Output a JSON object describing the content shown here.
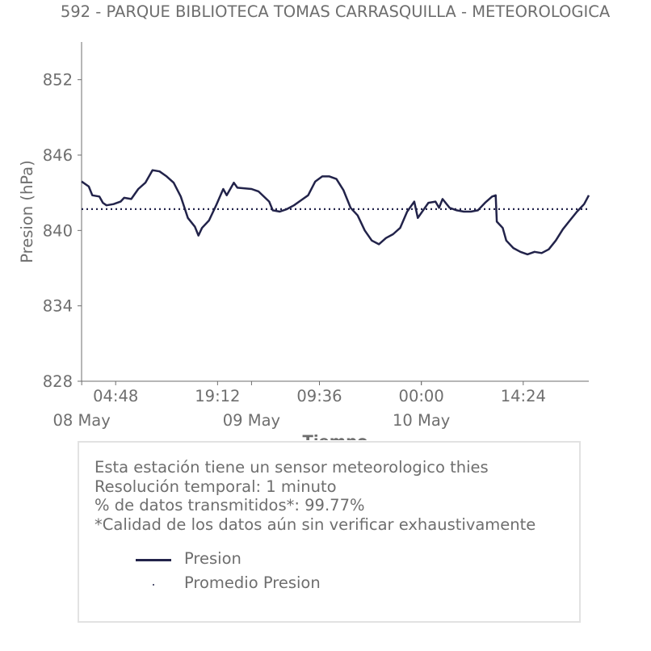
{
  "chart_data": {
    "type": "line",
    "title": "592 - PARQUE BIBLIOTECA TOMAS CARRASQUILLA - METEOROLOGICA",
    "xlabel": "Tiempo",
    "ylabel": "Presion (hPa)",
    "ylim": [
      828,
      855
    ],
    "yticks": [
      852,
      846,
      840,
      834,
      828
    ],
    "x_start": "2023-05-07T23:59",
    "x_end": "2023-05-10T23:40",
    "xticks": [
      {
        "t": "2023-05-08T04:48",
        "label": "04:48"
      },
      {
        "t": "2023-05-08T19:12",
        "label": "19:12"
      },
      {
        "t": "2023-05-09T09:36",
        "label": "09:36"
      },
      {
        "t": "2023-05-10T00:00",
        "label": "00:00"
      },
      {
        "t": "2023-05-10T14:24",
        "label": "14:24"
      }
    ],
    "date_labels": [
      {
        "t": "2023-05-08T00:00",
        "label": "08 May"
      },
      {
        "t": "2023-05-09T00:00",
        "label": "09 May"
      },
      {
        "t": "2023-05-10T00:00",
        "label": "10 May"
      }
    ],
    "series": [
      {
        "name": "Presion",
        "color": "#22234a",
        "points": [
          [
            "2023-05-07T23:59",
            843.9
          ],
          [
            "2023-05-08T01:00",
            843.5
          ],
          [
            "2023-05-08T01:30",
            842.8
          ],
          [
            "2023-05-08T02:30",
            842.7
          ],
          [
            "2023-05-08T03:00",
            842.2
          ],
          [
            "2023-05-08T03:30",
            842.0
          ],
          [
            "2023-05-08T04:30",
            842.1
          ],
          [
            "2023-05-08T05:30",
            842.3
          ],
          [
            "2023-05-08T06:00",
            842.6
          ],
          [
            "2023-05-08T07:00",
            842.5
          ],
          [
            "2023-05-08T08:00",
            843.3
          ],
          [
            "2023-05-08T09:00",
            843.8
          ],
          [
            "2023-05-08T10:00",
            844.8
          ],
          [
            "2023-05-08T11:00",
            844.7
          ],
          [
            "2023-05-08T12:00",
            844.3
          ],
          [
            "2023-05-08T13:00",
            843.8
          ],
          [
            "2023-05-08T14:00",
            842.7
          ],
          [
            "2023-05-08T15:00",
            841.0
          ],
          [
            "2023-05-08T16:00",
            840.3
          ],
          [
            "2023-05-08T16:30",
            839.6
          ],
          [
            "2023-05-08T17:00",
            840.2
          ],
          [
            "2023-05-08T18:00",
            840.8
          ],
          [
            "2023-05-08T19:00",
            842.0
          ],
          [
            "2023-05-08T20:00",
            843.3
          ],
          [
            "2023-05-08T20:30",
            842.8
          ],
          [
            "2023-05-08T21:30",
            843.8
          ],
          [
            "2023-05-08T22:00",
            843.4
          ],
          [
            "2023-05-09T00:00",
            843.3
          ],
          [
            "2023-05-09T01:00",
            843.1
          ],
          [
            "2023-05-09T02:30",
            842.3
          ],
          [
            "2023-05-09T03:00",
            841.6
          ],
          [
            "2023-05-09T04:00",
            841.5
          ],
          [
            "2023-05-09T05:00",
            841.7
          ],
          [
            "2023-05-09T06:00",
            842.0
          ],
          [
            "2023-05-09T07:00",
            842.4
          ],
          [
            "2023-05-09T08:00",
            842.8
          ],
          [
            "2023-05-09T09:00",
            843.9
          ],
          [
            "2023-05-09T10:00",
            844.3
          ],
          [
            "2023-05-09T11:00",
            844.3
          ],
          [
            "2023-05-09T12:00",
            844.1
          ],
          [
            "2023-05-09T13:00",
            843.2
          ],
          [
            "2023-05-09T14:00",
            841.8
          ],
          [
            "2023-05-09T15:00",
            841.2
          ],
          [
            "2023-05-09T16:00",
            840.0
          ],
          [
            "2023-05-09T17:00",
            839.2
          ],
          [
            "2023-05-09T18:00",
            838.9
          ],
          [
            "2023-05-09T19:00",
            839.4
          ],
          [
            "2023-05-09T20:00",
            839.7
          ],
          [
            "2023-05-09T21:00",
            840.2
          ],
          [
            "2023-05-09T22:00",
            841.5
          ],
          [
            "2023-05-09T23:00",
            842.3
          ],
          [
            "2023-05-09T23:30",
            841.0
          ],
          [
            "2023-05-10T01:00",
            842.2
          ],
          [
            "2023-05-10T02:00",
            842.3
          ],
          [
            "2023-05-10T02:30",
            841.8
          ],
          [
            "2023-05-10T03:00",
            842.5
          ],
          [
            "2023-05-10T04:00",
            841.8
          ],
          [
            "2023-05-10T05:00",
            841.6
          ],
          [
            "2023-05-10T06:00",
            841.5
          ],
          [
            "2023-05-10T07:00",
            841.5
          ],
          [
            "2023-05-10T08:00",
            841.6
          ],
          [
            "2023-05-10T09:00",
            842.2
          ],
          [
            "2023-05-10T10:00",
            842.7
          ],
          [
            "2023-05-10T10:30",
            842.8
          ],
          [
            "2023-05-10T10:40",
            840.7
          ],
          [
            "2023-05-10T11:30",
            840.2
          ],
          [
            "2023-05-10T12:00",
            839.2
          ],
          [
            "2023-05-10T13:00",
            838.6
          ],
          [
            "2023-05-10T14:00",
            838.3
          ],
          [
            "2023-05-10T15:00",
            838.1
          ],
          [
            "2023-05-10T16:00",
            838.3
          ],
          [
            "2023-05-10T17:00",
            838.2
          ],
          [
            "2023-05-10T18:00",
            838.5
          ],
          [
            "2023-05-10T19:00",
            839.2
          ],
          [
            "2023-05-10T20:00",
            840.1
          ],
          [
            "2023-05-10T21:00",
            840.8
          ],
          [
            "2023-05-10T22:00",
            841.5
          ],
          [
            "2023-05-10T23:00",
            842.1
          ],
          [
            "2023-05-10T23:40",
            842.8
          ]
        ]
      },
      {
        "name": "Promedio Presion",
        "color": "#22234a",
        "style": "dotted",
        "value": 841.7
      }
    ],
    "legend_position": "bottom"
  },
  "info": {
    "lines": [
      "Esta estación tiene un sensor meteorologico thies",
      "Resolución temporal: 1 minuto",
      "% de datos transmitidos*: 99.77%",
      "*Calidad de los datos aún sin verificar exhaustivamente"
    ]
  },
  "legend": {
    "items": [
      {
        "label": "Presion"
      },
      {
        "label": "Promedio Presion"
      }
    ]
  }
}
